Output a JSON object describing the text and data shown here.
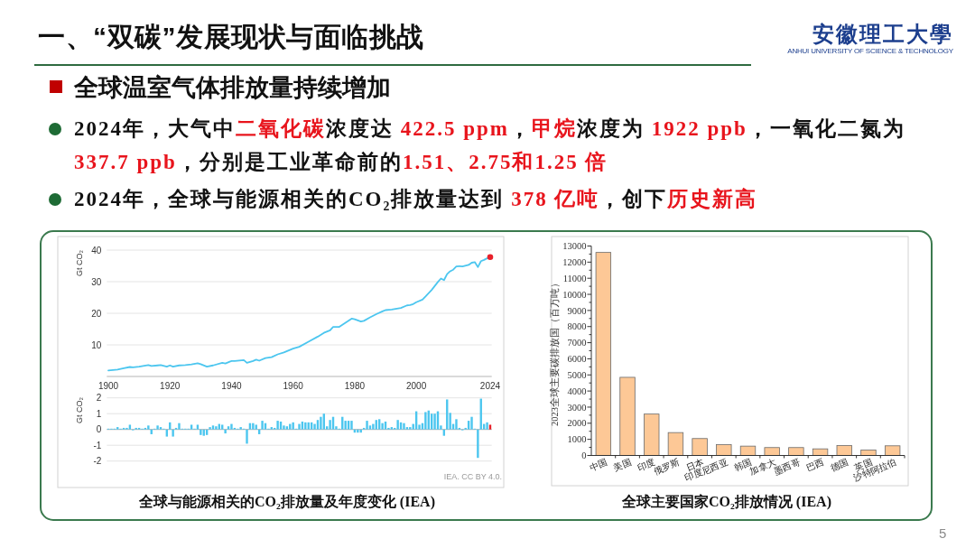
{
  "chart_data": [
    {
      "type": "other",
      "title": "一、“双碳”发展现状与面临挑战",
      "annotations": [
        "安徽理工大學",
        "ANHUI UNIVERSITY OF SCIENCE & TECHNOLOGY",
        "5"
      ]
    },
    {
      "type": "other",
      "title": "全球温室气体排放量持续增加"
    },
    {
      "type": "other",
      "annotations": [
        "2024年，大气中",
        "二氧化碳",
        "浓度达 ",
        "422.5 ppm",
        "，",
        "甲烷",
        "浓度为 ",
        "1922 ppb",
        "，一氧化二氮为 ",
        "337.7 ppb",
        "，分别是工业革命前的",
        "1.51、2.75和1.25 倍"
      ]
    },
    {
      "type": "other",
      "annotations": [
        "2024年，全球与能源相关的CO₂排放量达到 ",
        "378 亿吨",
        "，创下",
        "历史新高"
      ]
    },
    {
      "type": "line",
      "ylabel": "Gt CO₂",
      "xlim": [
        1899.5,
        2024.5
      ],
      "xticks": [
        1900,
        1920,
        1940,
        1960,
        1980,
        2000,
        2024
      ],
      "ylim": [
        0,
        40
      ],
      "yticks": [
        10,
        20,
        30,
        40
      ],
      "grid": "y",
      "series": [
        {
          "color": "#4cc6ef",
          "x": [
            1900,
            1903,
            1905,
            1907,
            1908,
            1910,
            1913,
            1914,
            1916,
            1917,
            1919,
            1920,
            1921,
            1923,
            1925,
            1927,
            1929,
            1930,
            1932,
            1934,
            1937,
            1938,
            1940,
            1941,
            1944,
            1945,
            1947,
            1948,
            1949,
            1951,
            1953,
            1955,
            1957,
            1960,
            1962,
            1965,
            1968,
            1970,
            1972,
            1973,
            1975,
            1977,
            1979,
            1980,
            1982,
            1983,
            1985,
            1987,
            1989,
            1990,
            1992,
            1995,
            1997,
            1998,
            1999,
            2000,
            2002,
            2003,
            2005,
            2007,
            2008,
            2009,
            2010,
            2011,
            2012,
            2013,
            2014,
            2015,
            2017,
            2018,
            2019,
            2020,
            2021,
            2022,
            2023,
            2024
          ],
          "values": [
            1.9,
            2.2,
            2.6,
            3.0,
            2.9,
            3.1,
            3.6,
            3.3,
            3.5,
            3.6,
            3.1,
            3.5,
            3.1,
            3.5,
            3.6,
            3.8,
            4.2,
            3.9,
            3.1,
            3.5,
            4.3,
            4.1,
            4.9,
            4.9,
            5.2,
            4.3,
            4.9,
            5.3,
            5.0,
            5.8,
            6.1,
            7.0,
            7.6,
            8.8,
            9.4,
            11.0,
            12.6,
            13.8,
            14.6,
            15.7,
            15.7,
            17.0,
            18.3,
            18.1,
            17.4,
            17.6,
            18.7,
            19.7,
            20.6,
            21.0,
            21.2,
            21.7,
            22.5,
            22.6,
            22.9,
            23.5,
            24.3,
            25.3,
            27.4,
            29.9,
            31.0,
            30.5,
            32.4,
            33.3,
            33.8,
            34.8,
            34.9,
            34.8,
            35.3,
            36.0,
            36.2,
            34.6,
            36.5,
            36.9,
            37.4,
            37.8
          ]
        },
        {
          "type": "scatter",
          "marker": "circle",
          "color": "#e8202a",
          "x": [
            2024
          ],
          "values": [
            37.8
          ]
        }
      ]
    },
    {
      "type": "bar",
      "ylabel": "Gt CO₂",
      "xlim": [
        1899.5,
        2024.5
      ],
      "ylim": [
        -2,
        2
      ],
      "yticks": [
        -2,
        -1,
        0,
        1,
        2
      ],
      "grid": "y",
      "tick_labels": "y",
      "series": [
        {
          "color": "#4cc6ef",
          "x": [
            1900,
            1901,
            1902,
            1903,
            1904,
            1905,
            1906,
            1907,
            1908,
            1909,
            1910,
            1911,
            1912,
            1913,
            1914,
            1915,
            1916,
            1917,
            1918,
            1919,
            1920,
            1921,
            1922,
            1923,
            1924,
            1925,
            1926,
            1927,
            1928,
            1929,
            1930,
            1931,
            1932,
            1933,
            1934,
            1935,
            1936,
            1937,
            1938,
            1939,
            1940,
            1941,
            1942,
            1943,
            1944,
            1945,
            1946,
            1947,
            1948,
            1949,
            1950,
            1951,
            1952,
            1953,
            1954,
            1955,
            1956,
            1957,
            1958,
            1959,
            1960,
            1961,
            1962,
            1963,
            1964,
            1965,
            1966,
            1967,
            1968,
            1969,
            1970,
            1971,
            1972,
            1973,
            1974,
            1975,
            1976,
            1977,
            1978,
            1979,
            1980,
            1981,
            1982,
            1983,
            1984,
            1985,
            1986,
            1987,
            1988,
            1989,
            1990,
            1991,
            1992,
            1993,
            1994,
            1995,
            1996,
            1997,
            1998,
            1999,
            2000,
            2001,
            2002,
            2003,
            2004,
            2005,
            2006,
            2007,
            2008,
            2009,
            2010,
            2011,
            2012,
            2013,
            2014,
            2015,
            2016,
            2017,
            2018,
            2019,
            2020,
            2021,
            2022,
            2023
          ],
          "values": [
            0.05,
            0.05,
            0.05,
            0.15,
            0.05,
            0.1,
            0.1,
            0.3,
            -0.05,
            0.1,
            0.1,
            0.05,
            0.1,
            0.25,
            -0.3,
            0.05,
            0.25,
            0.15,
            0.05,
            -0.45,
            0.45,
            -0.45,
            0.1,
            0.4,
            0.05,
            0.05,
            0.05,
            0.3,
            0.05,
            0.3,
            -0.35,
            -0.4,
            -0.35,
            0.15,
            0.25,
            0.2,
            0.35,
            0.3,
            -0.25,
            0.2,
            0.35,
            0.1,
            0.05,
            0.15,
            0.05,
            -0.9,
            0.4,
            0.4,
            0.3,
            -0.3,
            0.55,
            0.4,
            0.05,
            0.15,
            0.1,
            0.55,
            0.5,
            0.25,
            0.2,
            0.35,
            0.45,
            0.05,
            0.35,
            0.5,
            0.45,
            0.45,
            0.45,
            0.35,
            0.6,
            0.8,
            1.0,
            0.2,
            0.6,
            0.8,
            0.2,
            0.05,
            0.8,
            0.55,
            0.55,
            0.55,
            -0.2,
            -0.2,
            -0.2,
            0.1,
            0.55,
            0.25,
            0.35,
            0.6,
            0.65,
            0.4,
            0.5,
            0.1,
            0.15,
            0.1,
            0.6,
            0.45,
            0.4,
            0.15,
            0.15,
            0.35,
            1.15,
            0.3,
            0.4,
            1.1,
            1.2,
            1.0,
            1.0,
            1.15,
            0.25,
            -0.4,
            1.9,
            1.05,
            0.35,
            0.65,
            0.1,
            -0.05,
            0.1,
            0.55,
            0.8,
            0.05,
            -1.8,
            1.95,
            0.35,
            0.45
          ]
        },
        {
          "color": "#e8202a",
          "x": [
            2024
          ],
          "values": [
            0.3
          ]
        }
      ],
      "annotations": [
        "IEA. CC BY 4.0.",
        "全球与能源相关的CO₂排放量及年度变化 (IEA)"
      ]
    },
    {
      "type": "bar",
      "ylabel": "2023全球主要碳排放国（百万吨）",
      "categories": [
        "中国",
        "美国",
        "印度",
        "俄罗斯",
        "日本",
        "印度尼西亚",
        "韩国",
        "加拿大",
        "墨西哥",
        "巴西",
        "德国",
        "英国",
        "沙特阿拉伯"
      ],
      "values": [
        12600,
        4850,
        2570,
        1420,
        1050,
        670,
        580,
        490,
        490,
        410,
        620,
        340,
        600
      ],
      "color": "#fdc896",
      "ylim": [
        0,
        13000
      ],
      "yticks": [
        0,
        {
          "value": 500,
          "label": null
        },
        1000,
        {
          "value": 1500,
          "label": null
        },
        2000,
        {
          "value": 2500,
          "label": null
        },
        3000,
        {
          "value": 3500,
          "label": null
        },
        4000,
        {
          "value": 4500,
          "label": null
        },
        5000,
        {
          "value": 5500,
          "label": null
        },
        6000,
        {
          "value": 6500,
          "label": null
        },
        7000,
        {
          "value": 7500,
          "label": null
        },
        8000,
        {
          "value": 8500,
          "label": null
        },
        9000,
        {
          "value": 9500,
          "label": null
        },
        10000,
        {
          "value": 10500,
          "label": null
        },
        11000,
        {
          "value": 11500,
          "label": null
        },
        12000,
        {
          "value": 12500,
          "label": null
        },
        13000
      ],
      "annotations": [
        "全球主要国家CO₂排放情况 (IEA)"
      ]
    }
  ]
}
